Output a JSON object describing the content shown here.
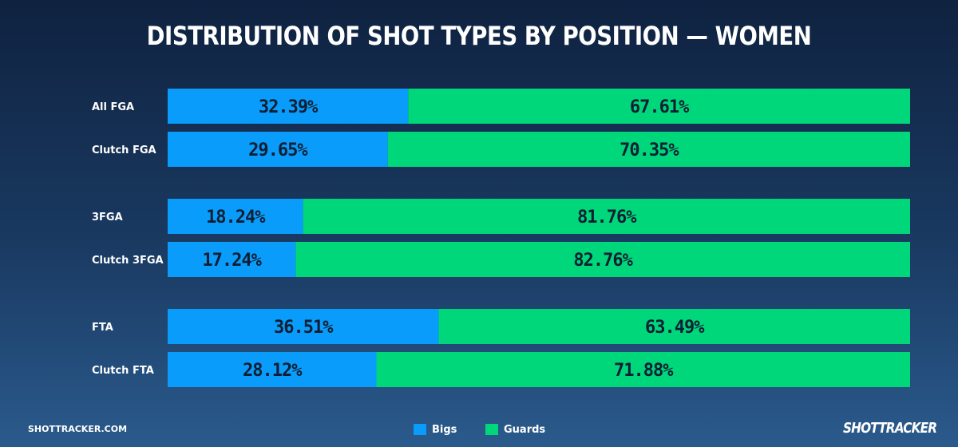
{
  "chart_data": {
    "type": "bar",
    "orientation": "horizontal",
    "stacked": true,
    "title": "DISTRIBUTION OF SHOT TYPES BY POSITION — WOMEN",
    "categories": [
      "All FGA",
      "Clutch FGA",
      "3FGA",
      "Clutch 3FGA",
      "FTA",
      "Clutch FTA"
    ],
    "series": [
      {
        "name": "Bigs",
        "color": "#0a9cfa",
        "values": [
          32.39,
          29.65,
          18.24,
          17.24,
          36.51,
          28.12
        ],
        "labels": [
          "32.39%",
          "29.65%",
          "18.24%",
          "17.24%",
          "36.51%",
          "28.12%"
        ]
      },
      {
        "name": "Guards",
        "color": "#00d77a",
        "values": [
          67.61,
          70.35,
          81.76,
          82.76,
          63.49,
          71.88
        ],
        "labels": [
          "67.61%",
          "70.35%",
          "81.76%",
          "82.76%",
          "63.49%",
          "71.88%"
        ]
      }
    ],
    "xlim": [
      0,
      100
    ],
    "legend_position": "bottom-center",
    "grid": false
  },
  "footer": {
    "site": "SHOTTRACKER.COM",
    "logo": "SHOTTRACKER"
  }
}
